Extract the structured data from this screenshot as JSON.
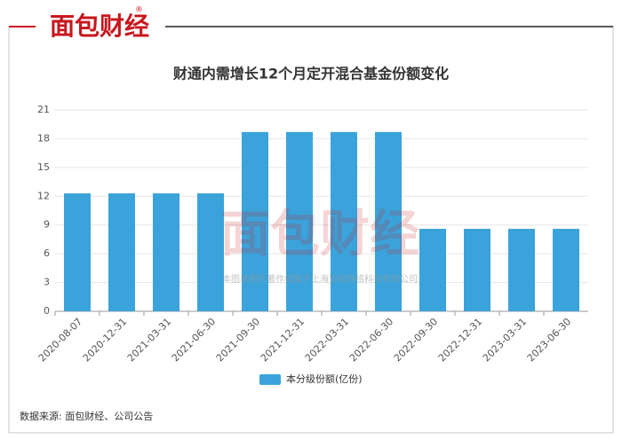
{
  "logo": "面包财经",
  "logo_mark": "®",
  "watermark": {
    "logo": "面包财经",
    "text": "本图表图片著作权属于上海钞探网络科技有限公司"
  },
  "source": "数据来源: 面包财经、公司公告",
  "chart_data": {
    "type": "bar",
    "title": "财通内需增长12个月定开混合基金份额变化",
    "categories": [
      "2020-08-07",
      "2020-12-31",
      "2021-03-31",
      "2021-06-30",
      "2021-09-30",
      "2021-12-31",
      "2022-03-31",
      "2022-06-30",
      "2022-09-30",
      "2022-12-31",
      "2023-03-31",
      "2023-06-30"
    ],
    "series": [
      {
        "name": "本分级份额(亿份)",
        "color": "#3aa3db",
        "values": [
          12.3,
          12.3,
          12.3,
          12.3,
          18.7,
          18.7,
          18.7,
          18.7,
          8.6,
          8.6,
          8.6,
          8.6
        ]
      }
    ],
    "ylim": [
      0,
      21
    ],
    "yticks": [
      0,
      3,
      6,
      9,
      12,
      15,
      18,
      21
    ],
    "grid": true,
    "legend": "bottom"
  }
}
